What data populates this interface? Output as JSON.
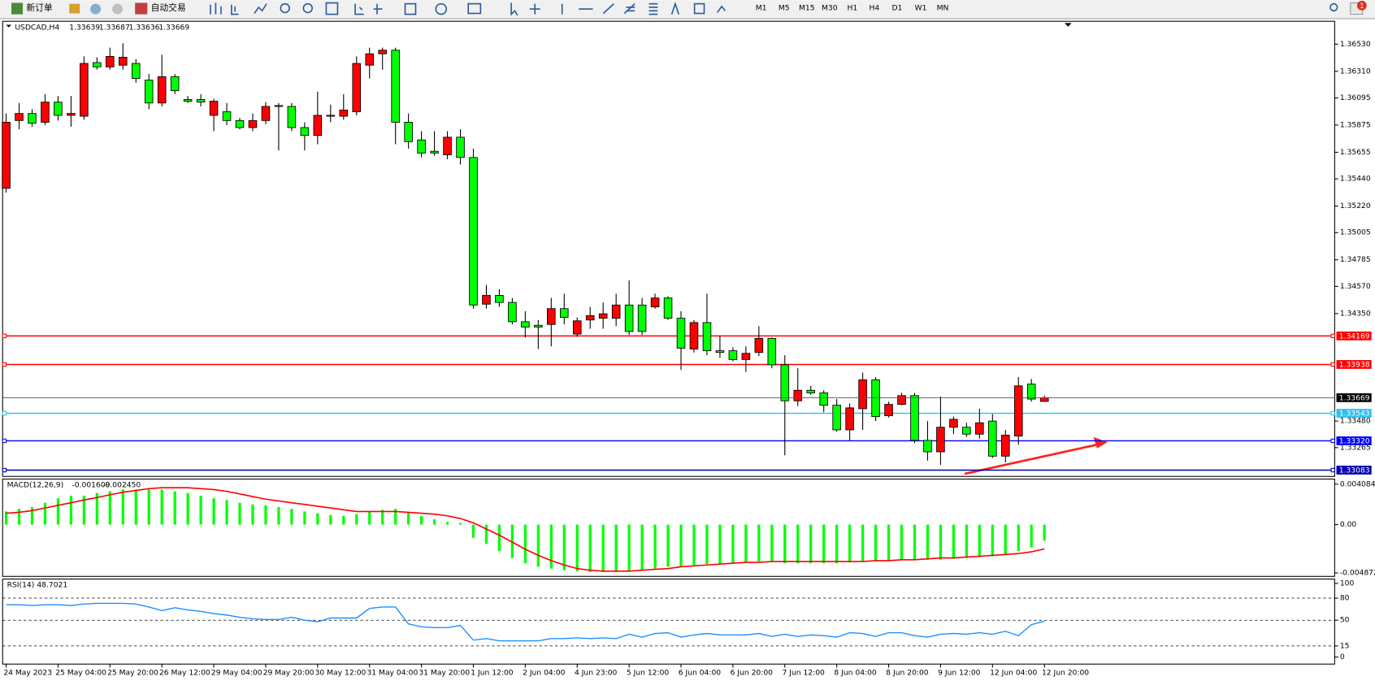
{
  "toolbar": {
    "new_order": "新订单",
    "auto_trading": "自动交易",
    "timeframes": [
      "M1",
      "M5",
      "M15",
      "M30",
      "H1",
      "H4",
      "D1",
      "W1",
      "MN"
    ],
    "notification_count": 1
  },
  "chart_data": [
    {
      "type": "candlestick",
      "title": "USDCAD,H4",
      "categories": [
        "24 May 2023",
        null,
        null,
        null,
        "25 May 04:00",
        null,
        null,
        null,
        "25 May 20:00",
        null,
        null,
        null,
        "26 May 12:00",
        null,
        null,
        null,
        "29 May 04:00",
        null,
        null,
        null,
        "29 May 20:00",
        null,
        null,
        null,
        "30 May 12:00",
        null,
        null,
        null,
        "31 May 04:00",
        null,
        null,
        null,
        "31 May 20:00",
        null,
        null,
        null,
        "1 Jun 12:00",
        null,
        null,
        null,
        "2 Jun 04:00",
        null,
        null,
        null,
        "4 Jun 23:00",
        null,
        null,
        null,
        "5 Jun 12:00",
        null,
        null,
        null,
        "6 Jun 04:00",
        null,
        null,
        null,
        "6 Jun 20:00",
        null,
        null,
        null,
        "7 Jun 12:00",
        null,
        null,
        null,
        "8 Jun 04:00",
        null,
        null,
        null,
        "8 Jun 20:00",
        null,
        null,
        null,
        "9 Jun 12:00",
        null,
        null,
        null,
        "12 Jun 04:00",
        null,
        null,
        null,
        "12 Jun 20:00"
      ],
      "ohlc": [
        [
          1.35364,
          1.35969,
          1.35329,
          1.35898
        ],
        [
          1.35912,
          1.36054,
          1.35841,
          1.35969
        ],
        [
          1.35969,
          1.36004,
          1.35862,
          1.3589
        ],
        [
          1.35898,
          1.36125,
          1.35876,
          1.36061
        ],
        [
          1.36061,
          1.36111,
          1.35912,
          1.35954
        ],
        [
          1.35954,
          1.36111,
          1.35862,
          1.35969
        ],
        [
          1.35947,
          1.36431,
          1.35919,
          1.36374
        ],
        [
          1.36381,
          1.36424,
          1.36324,
          1.36346
        ],
        [
          1.36346,
          1.36502,
          1.36324,
          1.36431
        ],
        [
          1.3636,
          1.36537,
          1.36324,
          1.36424
        ],
        [
          1.36374,
          1.3641,
          1.36218,
          1.36253
        ],
        [
          1.36239,
          1.36289,
          1.36004,
          1.36054
        ],
        [
          1.36054,
          1.36445,
          1.36026,
          1.36267
        ],
        [
          1.36267,
          1.36289,
          1.36125,
          1.36154
        ],
        [
          1.36082,
          1.36111,
          1.36054,
          1.36068
        ],
        [
          1.36082,
          1.36125,
          1.36026,
          1.36061
        ],
        [
          1.35954,
          1.3609,
          1.35826,
          1.36068
        ],
        [
          1.35983,
          1.36054,
          1.35876,
          1.35912
        ],
        [
          1.35912,
          1.35933,
          1.35841,
          1.35855
        ],
        [
          1.35855,
          1.35969,
          1.35826,
          1.35912
        ],
        [
          1.35912,
          1.36061,
          1.35883,
          1.36026
        ],
        [
          1.36033,
          1.36054,
          1.3567,
          1.36026
        ],
        [
          1.36026,
          1.36054,
          1.35826,
          1.35855
        ],
        [
          1.35855,
          1.35898,
          1.3567,
          1.35791
        ],
        [
          1.35791,
          1.36146,
          1.3572,
          1.35954
        ],
        [
          1.35947,
          1.3604,
          1.35898,
          1.35954
        ],
        [
          1.35947,
          1.36125,
          1.35919,
          1.35997
        ],
        [
          1.35983,
          1.36431,
          1.35954,
          1.36374
        ],
        [
          1.3636,
          1.36502,
          1.36253,
          1.36452
        ],
        [
          1.36452,
          1.36502,
          1.36324,
          1.36481
        ],
        [
          1.36481,
          1.36502,
          1.3572,
          1.35898
        ],
        [
          1.35898,
          1.35969,
          1.35684,
          1.35741
        ],
        [
          1.35755,
          1.35826,
          1.35613,
          1.35649
        ],
        [
          1.35663,
          1.35826,
          1.35627,
          1.35649
        ],
        [
          1.35635,
          1.35826,
          1.35599,
          1.35777
        ],
        [
          1.35777,
          1.35841,
          1.35556,
          1.35613
        ],
        [
          1.35613,
          1.35684,
          1.3439,
          1.34419
        ],
        [
          1.34426,
          1.34582,
          1.3439,
          1.34497
        ],
        [
          1.34497,
          1.34547,
          1.34404,
          1.3444
        ],
        [
          1.3444,
          1.34476,
          1.34262,
          1.34284
        ],
        [
          1.34284,
          1.34369,
          1.34156,
          1.34241
        ],
        [
          1.34255,
          1.34298,
          1.34063,
          1.34241
        ],
        [
          1.34262,
          1.34476,
          1.34085,
          1.3439
        ],
        [
          1.3439,
          1.34511,
          1.34262,
          1.34319
        ],
        [
          1.34184,
          1.34319,
          1.34163,
          1.34291
        ],
        [
          1.34298,
          1.34404,
          1.34227,
          1.34333
        ],
        [
          1.34312,
          1.3444,
          1.34227,
          1.34348
        ],
        [
          1.34312,
          1.34511,
          1.34248,
          1.34419
        ],
        [
          1.34419,
          1.34618,
          1.34177,
          1.34205
        ],
        [
          1.34419,
          1.34476,
          1.34177,
          1.34205
        ],
        [
          1.34404,
          1.34511,
          1.3439,
          1.34476
        ],
        [
          1.34476,
          1.3449,
          1.34298,
          1.34312
        ],
        [
          1.34312,
          1.34369,
          1.33893,
          1.3407
        ],
        [
          1.34063,
          1.34298,
          1.34035,
          1.34277
        ],
        [
          1.34277,
          1.34511,
          1.34013,
          1.34049
        ],
        [
          1.34049,
          1.3417,
          1.33992,
          1.34035
        ],
        [
          1.34049,
          1.34077,
          1.33964,
          1.33978
        ],
        [
          1.33978,
          1.34085,
          1.33878,
          1.34028
        ],
        [
          1.34035,
          1.34248,
          1.34006,
          1.34149
        ],
        [
          1.34149,
          1.34156,
          1.33907,
          1.33935
        ],
        [
          1.33935,
          1.34013,
          1.33203,
          1.33644
        ],
        [
          1.33644,
          1.33907,
          1.33601,
          1.33729
        ],
        [
          1.33729,
          1.33765,
          1.33693,
          1.33708
        ],
        [
          1.33708,
          1.33729,
          1.33551,
          1.33608
        ],
        [
          1.33608,
          1.33658,
          1.33395,
          1.33409
        ],
        [
          1.33409,
          1.33622,
          1.33324,
          1.33587
        ],
        [
          1.3358,
          1.33871,
          1.33409,
          1.33814
        ],
        [
          1.33814,
          1.33836,
          1.3348,
          1.33516
        ],
        [
          1.33523,
          1.33637,
          1.33509,
          1.33615
        ],
        [
          1.33615,
          1.33708,
          1.33608,
          1.33686
        ],
        [
          1.33686,
          1.33708,
          1.33302,
          1.33324
        ],
        [
          1.33324,
          1.3348,
          1.3316,
          1.33231
        ],
        [
          1.33231,
          1.33679,
          1.33125,
          1.3343
        ],
        [
          1.3343,
          1.33516,
          1.33374,
          1.33494
        ],
        [
          1.3343,
          1.33466,
          1.33352,
          1.33374
        ],
        [
          1.33374,
          1.3358,
          1.33338,
          1.33466
        ],
        [
          1.3348,
          1.33537,
          1.33182,
          1.33196
        ],
        [
          1.33196,
          1.33409,
          1.33146,
          1.33366
        ],
        [
          1.33359,
          1.33836,
          1.33288,
          1.33765
        ],
        [
          1.33779,
          1.33821,
          1.33637,
          1.33658
        ],
        [
          1.33639,
          1.33687,
          1.33636,
          1.33669
        ]
      ],
      "up_color": "#ff0000",
      "down_color": "#00ff00",
      "ylim": [
        1.33032,
        1.36715
      ],
      "yticks": [
        {
          "value": 1.3653,
          "label": "1.36530"
        },
        {
          "value": 1.3631,
          "label": "1.36310"
        },
        1.36095,
        1.35875,
        1.35655,
        {
          "value": 1.3544,
          "label": "1.35440"
        },
        {
          "value": 1.3522,
          "label": "1.35220"
        },
        1.35005,
        1.34785,
        {
          "value": 1.3457,
          "label": "1.34570"
        },
        {
          "value": 1.3435,
          "label": "1.34350"
        },
        {
          "value": 1.3348,
          "label": "1.33480"
        },
        1.33265
      ],
      "hlines": [
        {
          "value": 1.34169,
          "color": "#ff0000"
        },
        {
          "value": 1.33938,
          "color": "#ff0000"
        },
        {
          "value": 1.33543,
          "color": "#2ec0f0"
        },
        {
          "value": 1.3332,
          "label": "1.33320",
          "color": "#0000ff"
        },
        {
          "value": 1.33083,
          "color": "#0000b0"
        }
      ],
      "last_price_line": true
    },
    {
      "type": "macd",
      "title": "MACD(12,26,9)",
      "series": [
        {
          "style": "bar",
          "color": "#00ff00",
          "values": [
            0.00133,
            0.00159,
            0.00177,
            0.00221,
            0.00266,
            0.00292,
            0.00292,
            0.00319,
            0.00336,
            0.00354,
            0.00354,
            0.00354,
            0.00354,
            0.00336,
            0.00319,
            0.00292,
            0.00266,
            0.00248,
            0.00221,
            0.00204,
            0.00195,
            0.00177,
            0.00159,
            0.00133,
            0.00115,
            0.00097,
            0.00089,
            0.00106,
            0.00133,
            0.0015,
            0.00159,
            0.00124,
            0.00089,
            0.00053,
            0.00027,
            0.00018,
            -0.00133,
            -0.00195,
            -0.00266,
            -0.00336,
            -0.00389,
            -0.00425,
            -0.00443,
            -0.0046,
            -0.00469,
            -0.00478,
            -0.00478,
            -0.00478,
            -0.00469,
            -0.0046,
            -0.00443,
            -0.00425,
            -0.00425,
            -0.00407,
            -0.00398,
            -0.00398,
            -0.00389,
            -0.00381,
            -0.00372,
            -0.00372,
            -0.00389,
            -0.00389,
            -0.00389,
            -0.00389,
            -0.00389,
            -0.00381,
            -0.00372,
            -0.00372,
            -0.00363,
            -0.00354,
            -0.00354,
            -0.00354,
            -0.00354,
            -0.00345,
            -0.00336,
            -0.00327,
            -0.00319,
            -0.00301,
            -0.00266,
            -0.0023,
            -0.001609
          ]
        },
        {
          "style": "line",
          "color": "#ff0000",
          "last_label": "-0.002450",
          "values": [
            0.00115,
            0.00124,
            0.00142,
            0.00168,
            0.00195,
            0.00221,
            0.00248,
            0.00274,
            0.00301,
            0.00327,
            0.00345,
            0.00363,
            0.00372,
            0.00372,
            0.00372,
            0.00363,
            0.00354,
            0.00336,
            0.0031,
            0.00283,
            0.00257,
            0.00239,
            0.00221,
            0.00204,
            0.00186,
            0.00168,
            0.0015,
            0.00133,
            0.00133,
            0.00133,
            0.00133,
            0.00124,
            0.00115,
            0.00106,
            0.00089,
            0.00062,
            0.00018,
            -0.00044,
            -0.00106,
            -0.00177,
            -0.00248,
            -0.0031,
            -0.00363,
            -0.00407,
            -0.00443,
            -0.0046,
            -0.00469,
            -0.00469,
            -0.00469,
            -0.0046,
            -0.00451,
            -0.00443,
            -0.00425,
            -0.00416,
            -0.00407,
            -0.00398,
            -0.00389,
            -0.00381,
            -0.00381,
            -0.00372,
            -0.00372,
            -0.00372,
            -0.00372,
            -0.00372,
            -0.00372,
            -0.00372,
            -0.00372,
            -0.00363,
            -0.00363,
            -0.00354,
            -0.00354,
            -0.00345,
            -0.00336,
            -0.00336,
            -0.00327,
            -0.00319,
            -0.0031,
            -0.00301,
            -0.00292,
            -0.00274,
            -0.00245
          ]
        }
      ],
      "ylim": [
        -0.00522,
        0.0046
      ],
      "yticks": [
        0.004084,
        {
          "value": 0,
          "label": "0.00"
        },
        -0.004872
      ]
    },
    {
      "type": "line",
      "title": "RSI(14)",
      "color": "#1e90ff",
      "values": [
        71,
        71,
        70,
        71,
        71,
        70,
        72,
        73,
        73,
        73,
        72,
        68,
        63,
        67,
        64,
        62,
        59,
        57,
        54,
        52,
        51,
        51,
        54,
        50,
        48,
        53,
        53,
        53,
        66,
        68,
        68,
        45,
        41,
        40,
        40,
        43,
        23,
        25,
        22,
        22,
        22,
        22,
        25,
        25,
        26,
        25,
        26,
        25,
        31,
        27,
        32,
        33,
        27,
        30,
        32,
        30,
        30,
        30,
        32,
        28,
        31,
        28,
        30,
        29,
        27,
        33,
        32,
        28,
        33,
        33,
        29,
        27,
        31,
        32,
        31,
        33,
        31,
        35,
        29,
        44,
        48.7021
      ],
      "ylim": [
        -9.6,
        106
      ],
      "yticks": [
        100,
        80,
        50,
        15,
        0
      ]
    }
  ]
}
